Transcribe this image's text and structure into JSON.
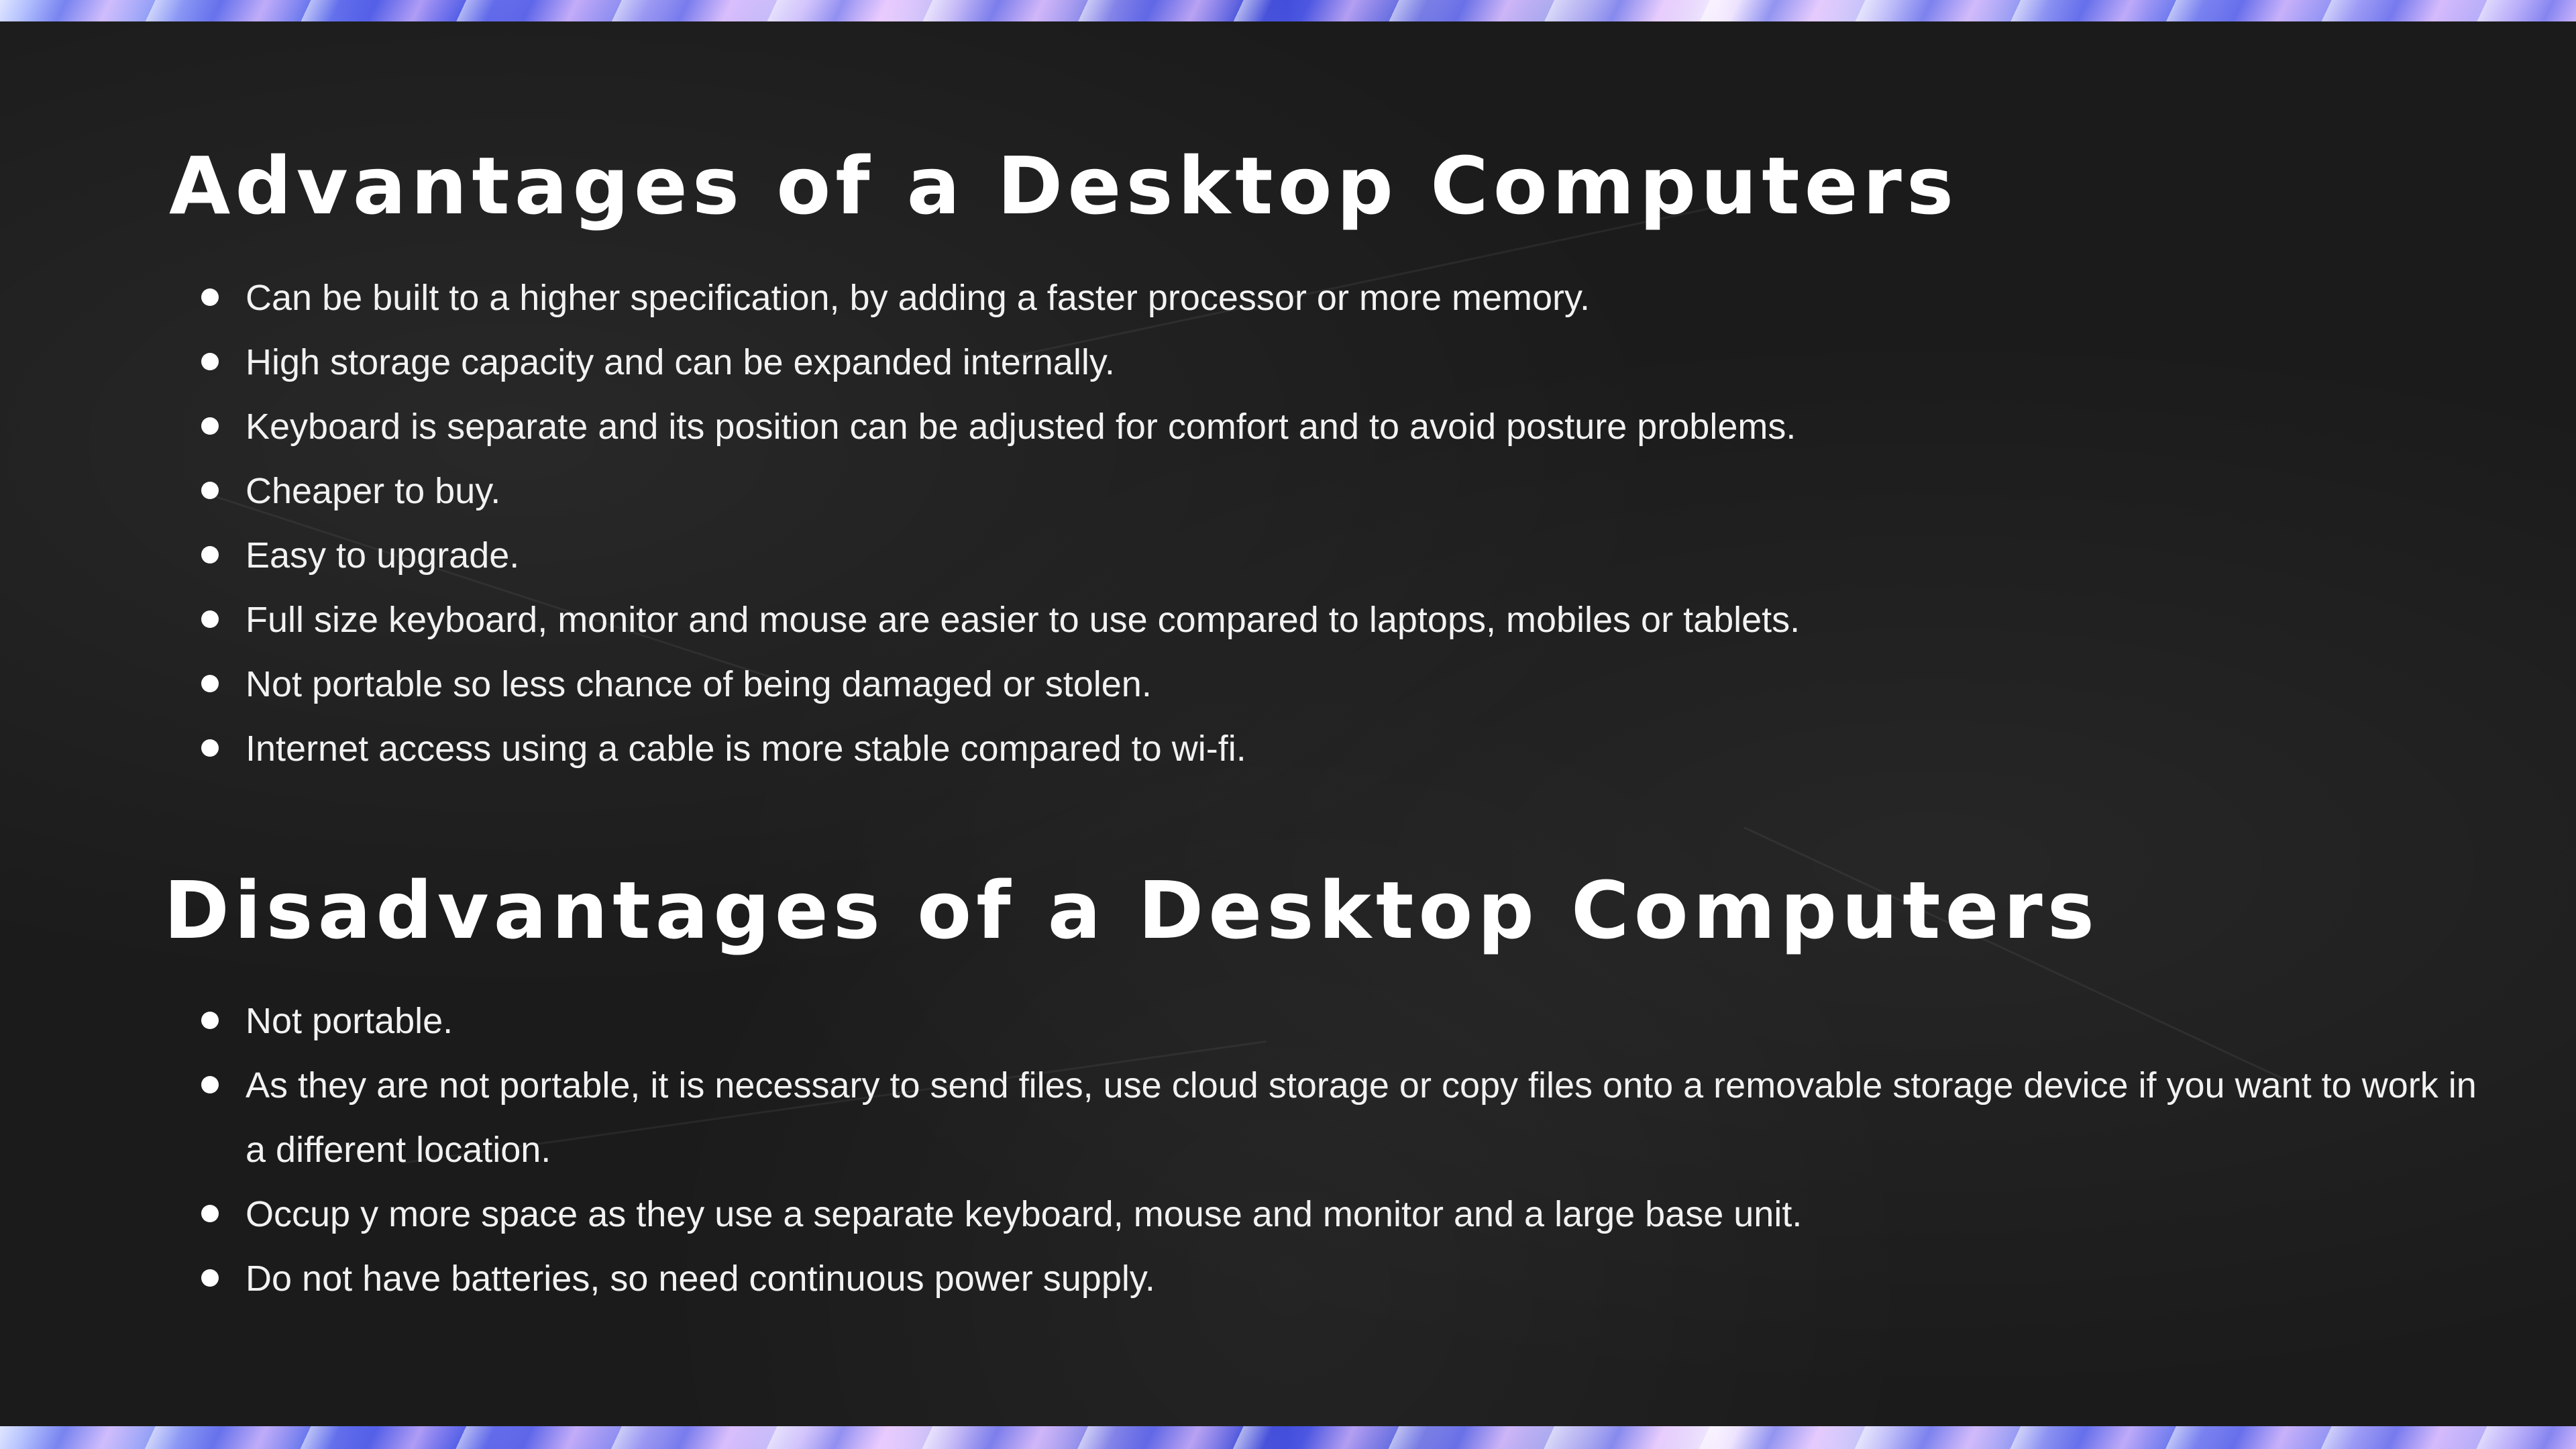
{
  "advantages": {
    "title": "Advantages of a Desktop Computers",
    "items": [
      "Can be built to a higher specification, by adding a faster processor or more memory.",
      "High storage capacity and can be expanded internally.",
      "Keyboard is separate and its position can be adjusted for comfort and to avoid posture problems.",
      "Cheaper to buy.",
      "Easy to upgrade.",
      "Full size keyboard, monitor and mouse are easier to use compared to laptops, mobiles or tablets.",
      "Not portable so less chance of being damaged or stolen.",
      "Internet access using a cable is more stable compared to wi-fi."
    ]
  },
  "disadvantages": {
    "title": "Disadvantages of a Desktop Computers",
    "items": [
      "Not portable.",
      "As they are not portable, it is necessary to send files, use cloud storage or copy files onto a removable storage device if you want to work in a different location.",
      "Occup y more space as they use a separate keyboard, mouse and monitor and a large base unit.",
      "Do not have batteries, so need continuous power supply."
    ]
  },
  "colors": {
    "background": "#1b1b1b",
    "text": "#ffffff",
    "border_accent": "#5b5ae0"
  }
}
